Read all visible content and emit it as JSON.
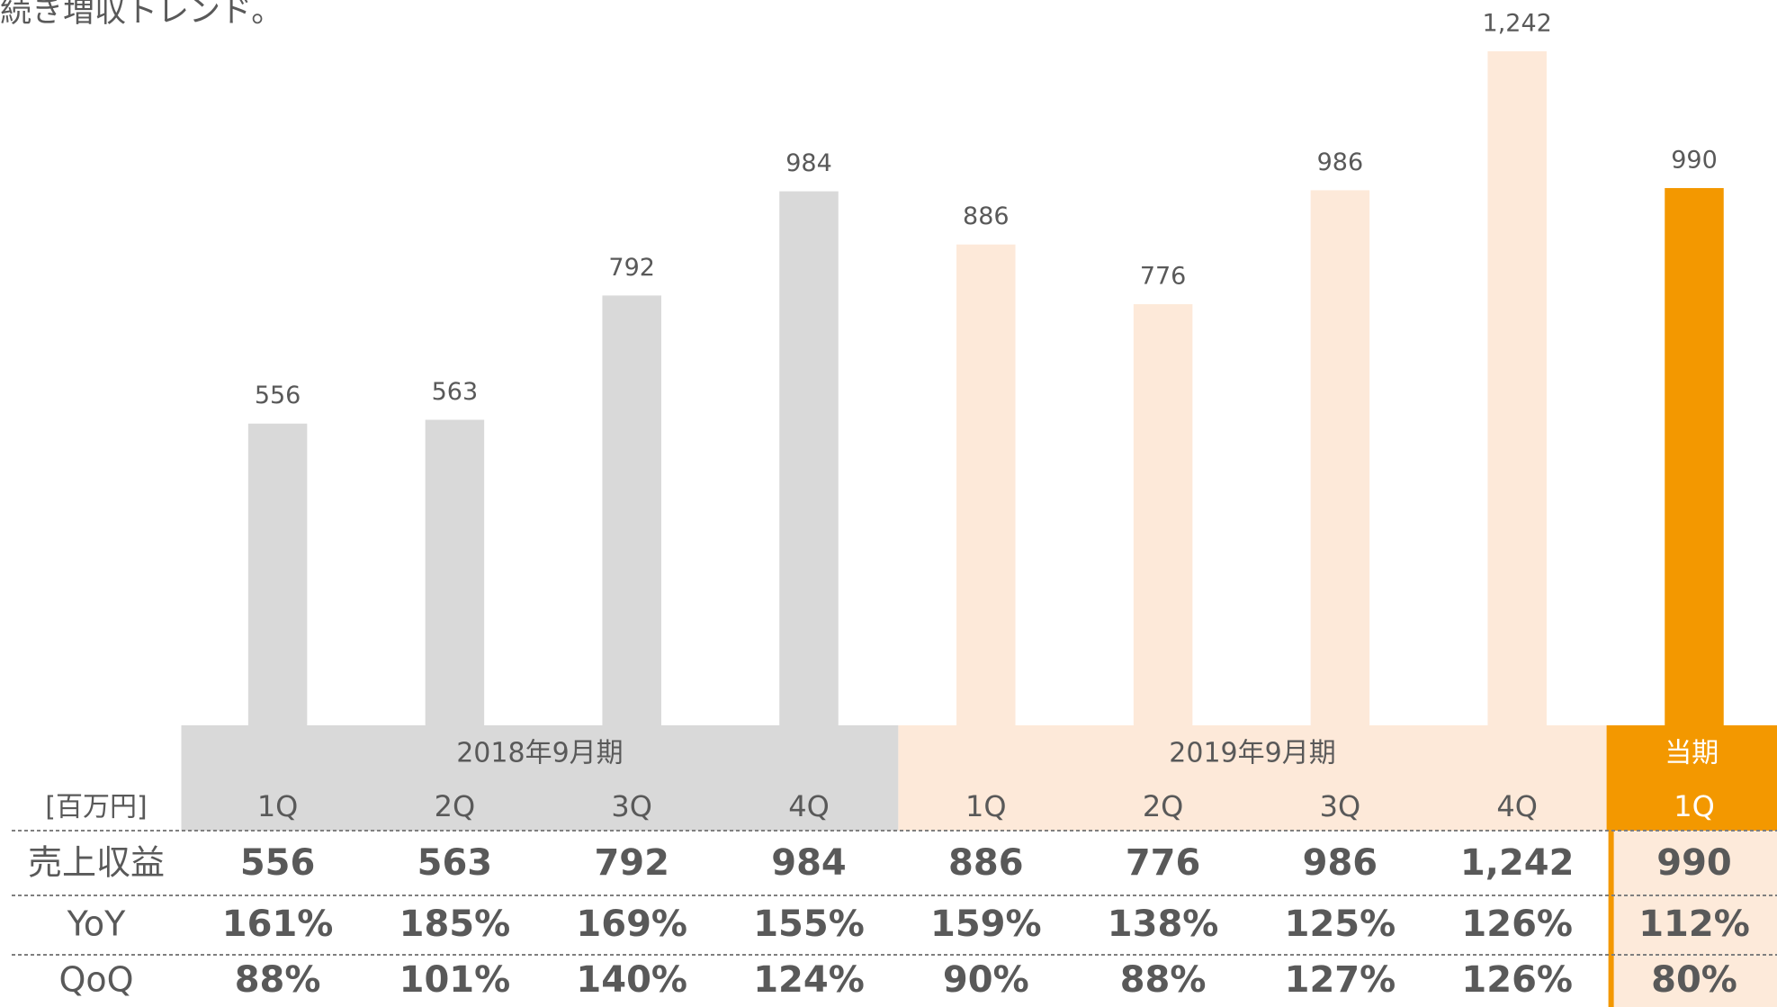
{
  "chart_data": {
    "type": "bar",
    "title": "続き増収トレンド。",
    "unit_label": "[百万円]",
    "categories": [
      "1Q",
      "2Q",
      "3Q",
      "4Q",
      "1Q",
      "2Q",
      "3Q",
      "4Q",
      "1Q"
    ],
    "series": [
      {
        "name": "2018年9月期",
        "color": "#d9d9d9",
        "values": [
          556,
          563,
          792,
          984,
          null,
          null,
          null,
          null,
          null
        ],
        "value_labels": [
          "556",
          "563",
          "792",
          "984",
          null,
          null,
          null,
          null,
          null
        ]
      },
      {
        "name": "2019年9月期",
        "color": "#fde9d9",
        "values": [
          null,
          null,
          null,
          null,
          886,
          776,
          986,
          1242,
          null
        ],
        "value_labels": [
          null,
          null,
          null,
          null,
          "886",
          "776",
          "986",
          "1,242",
          null
        ]
      },
      {
        "name": "当期",
        "color": "#f39800",
        "values": [
          null,
          null,
          null,
          null,
          null,
          null,
          null,
          null,
          990
        ],
        "value_labels": [
          null,
          null,
          null,
          null,
          null,
          null,
          null,
          null,
          "990"
        ]
      }
    ],
    "row_labels": [
      "売上収益",
      "YoY",
      "QoQ"
    ],
    "yoy": [
      "161%",
      "185%",
      "169%",
      "155%",
      "159%",
      "138%",
      "125%",
      "126%",
      "112%"
    ],
    "qoq": [
      "88%",
      "101%",
      "140%",
      "124%",
      "90%",
      "88%",
      "127%",
      "126%",
      "80%"
    ]
  }
}
